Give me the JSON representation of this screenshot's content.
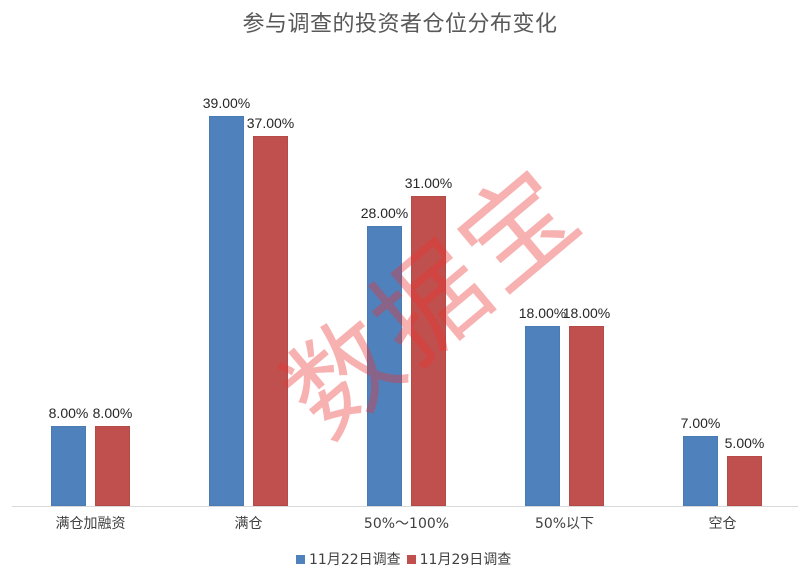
{
  "chart_data": {
    "type": "bar",
    "title": "参与调查的投资者仓位分布变化",
    "xlabel": "",
    "ylabel": "",
    "categories": [
      "满仓加融资",
      "满仓",
      "50%～100%",
      "50%以下",
      "空仓"
    ],
    "series": [
      {
        "name": "11月22日调查",
        "color": "#4f81bd",
        "values": [
          8.0,
          39.0,
          28.0,
          18.0,
          7.0
        ],
        "labels": [
          "8.00%",
          "39.00%",
          "28.00%",
          "18.00%",
          "7.00%"
        ]
      },
      {
        "name": "11月29日调查",
        "color": "#c0504d",
        "values": [
          8.0,
          37.0,
          31.0,
          18.0,
          5.0
        ],
        "labels": [
          "8.00%",
          "37.00%",
          "31.00%",
          "18.00%",
          "5.00%"
        ]
      }
    ],
    "ylim": [
      0,
      40
    ],
    "grid": false,
    "legend_position": "bottom",
    "unit": "%"
  },
  "watermark": "数据宝"
}
